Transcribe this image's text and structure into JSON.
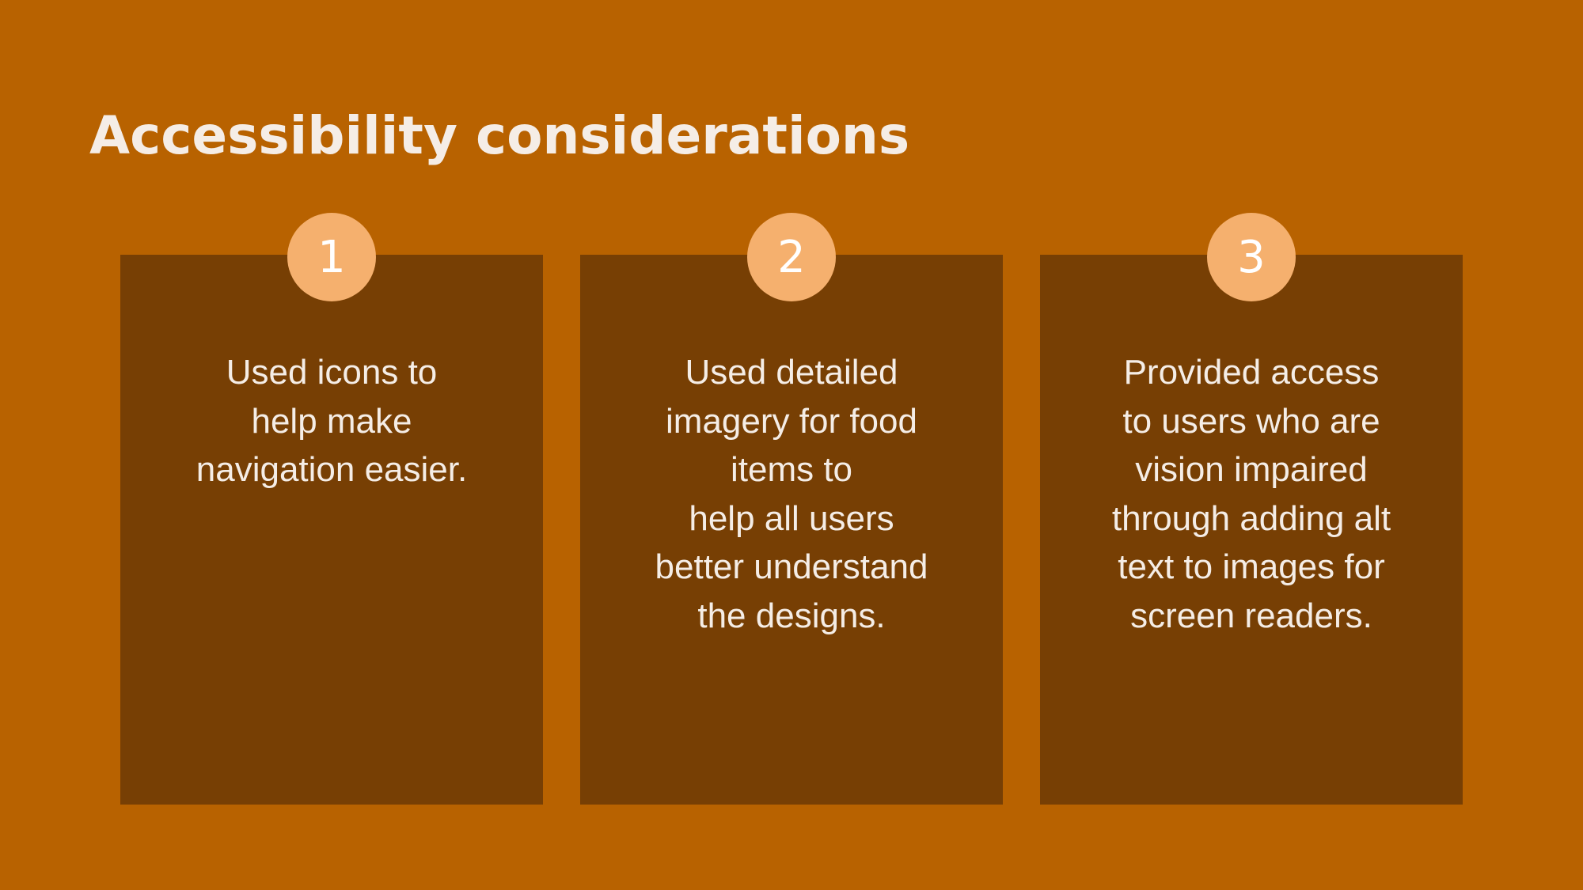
{
  "title": "Accessibility considerations",
  "colors": {
    "background": "#B86200",
    "card": "#773F04",
    "badge": "#F5B06E",
    "text": "#F5EDE6"
  },
  "cards": [
    {
      "number": "1",
      "lines": [
        "Used icons to",
        "help make",
        "navigation easier."
      ]
    },
    {
      "number": "2",
      "lines": [
        "Used detailed",
        "imagery for food",
        "items to",
        "help all users",
        "better understand",
        "the designs."
      ]
    },
    {
      "number": "3",
      "lines": [
        "Provided access",
        "to users who are",
        "vision impaired",
        "through adding alt",
        "text to images for",
        "screen readers."
      ]
    }
  ]
}
